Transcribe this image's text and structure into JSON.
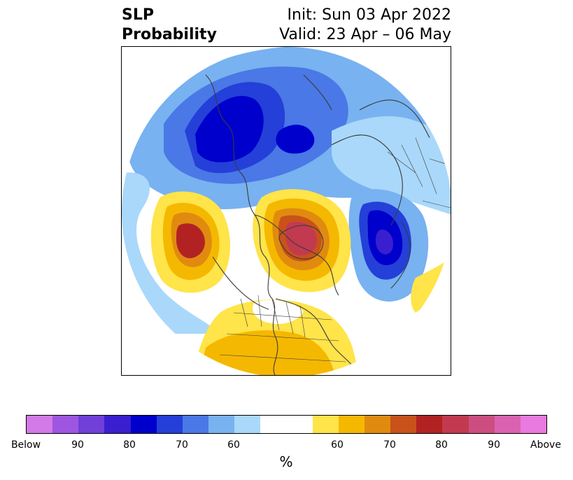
{
  "title": {
    "left_line1": "SLP",
    "left_line2": "Probability",
    "right_line1": "Init: Sun 03 Apr 2022",
    "right_line2": "Valid: 23 Apr – 06 May"
  },
  "colorbar": {
    "label": "%",
    "colors": [
      "#d479e8",
      "#9e56e0",
      "#7040d8",
      "#3a1fd0",
      "#0000cc",
      "#2440d8",
      "#4a78e6",
      "#78b2f0",
      "#aad8fa",
      "#ffffff",
      "#ffe44a",
      "#f5b800",
      "#e08b10",
      "#c8521a",
      "#b22222",
      "#c23a50",
      "#cc4e80",
      "#db62b0",
      "#e87ae0"
    ],
    "ticks": [
      "Below",
      "90",
      "80",
      "70",
      "60",
      "60",
      "70",
      "80",
      "90",
      "Above"
    ]
  },
  "map": {
    "projection": "north-polar-stereographic",
    "features": [
      "coastlines",
      "country-borders",
      "us-state-borders"
    ]
  }
}
